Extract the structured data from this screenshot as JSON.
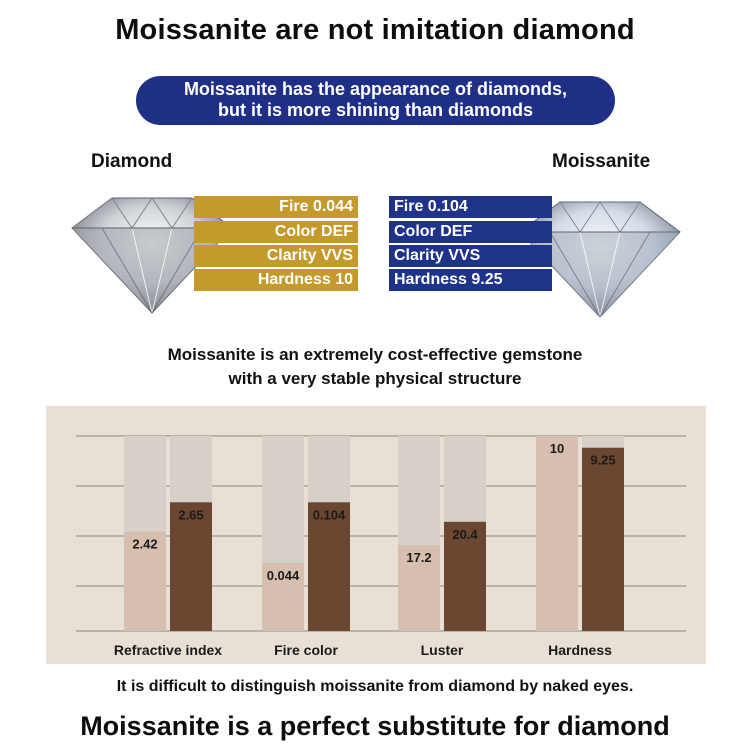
{
  "header": {
    "title": "Moissanite are not imitation diamond",
    "banner_line1": "Moissanite has the appearance of diamonds,",
    "banner_line2": "but it is more shining than diamonds"
  },
  "comparison": {
    "left_label": "Diamond",
    "right_label": "Moissanite",
    "diamond_specs": [
      "Fire 0.044",
      "Color DEF",
      "Clarity VVS",
      "Hardness 10"
    ],
    "moissanite_specs": [
      "Fire 0.104",
      "Color DEF",
      "Clarity VVS",
      "Hardness 9.25"
    ],
    "colors": {
      "diamond": "#c49a2c",
      "moissanite": "#1f3388",
      "banner": "#1f2f86"
    }
  },
  "subtitle": {
    "line1": "Moissanite is an extremely cost-effective gemstone",
    "line2": "with a very stable physical structure"
  },
  "chart_data": {
    "type": "bar",
    "categories": [
      "Refractive index",
      "Fire color",
      "Luster",
      "Hardness"
    ],
    "series": [
      {
        "values": [
          2.42,
          0.044,
          17.2,
          10
        ],
        "labels": [
          "2.42",
          "0.044",
          "17.2",
          "10"
        ],
        "color": "#d6bfae"
      },
      {
        "values": [
          2.65,
          0.104,
          20.4,
          9.25
        ],
        "labels": [
          "2.65",
          "0.104",
          "20.4",
          "9.25"
        ],
        "color": "#6b4630"
      }
    ],
    "heights_fraction": [
      [
        0.51,
        0.66
      ],
      [
        0.35,
        0.66
      ],
      [
        0.44,
        0.56
      ],
      [
        1.0,
        0.94
      ]
    ],
    "track_color": "#d7d0c9",
    "grid": true,
    "title": "",
    "xlabel": "",
    "ylabel": ""
  },
  "footer": {
    "note": "It is difficult to distinguish moissanite from diamond by naked eyes.",
    "tagline": "Moissanite is a perfect substitute for diamond"
  }
}
